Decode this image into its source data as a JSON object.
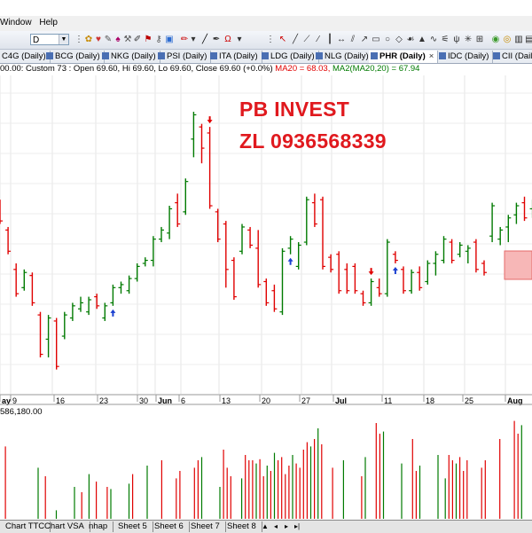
{
  "menu": {
    "items": [
      "Window",
      "Help"
    ]
  },
  "toolbar": {
    "interval_value": "D"
  },
  "tabs": [
    {
      "label": "C4G (Daily)",
      "active": false
    },
    {
      "label": "BCG (Daily)",
      "active": false
    },
    {
      "label": "NKG (Daily)",
      "active": false
    },
    {
      "label": "PSI (Daily)",
      "active": false
    },
    {
      "label": "ITA (Daily)",
      "active": false
    },
    {
      "label": "LDG (Daily)",
      "active": false
    },
    {
      "label": "NLG (Daily)",
      "active": false
    },
    {
      "label": "PHR (Daily)",
      "active": true,
      "close": "×"
    },
    {
      "label": "IDC (Daily)",
      "active": false
    },
    {
      "label": "CII (Daily",
      "active": false
    }
  ],
  "info": {
    "prefix": "00.00: Custom 73 : Open 69.60, Hi 69.60, Lo 69.60, Close 69.60 (+0.0%) ",
    "ma20": "MA20 = 68.03,",
    "ma2": " MA2(MA20,20) = 67.94"
  },
  "watermark": {
    "line1": "PB INVEST",
    "line2": "ZL 0936568339"
  },
  "colors": {
    "up": "#007a00",
    "down": "#e00000",
    "signal": "#1a3fd0",
    "watermark": "#e0191e",
    "highlight": "#f7b7b7"
  },
  "chart_data": {
    "type": "ohlc",
    "x_labels": [
      "ay",
      "9",
      "16",
      "23",
      "30",
      "Jun",
      "6",
      "13",
      "20",
      "27",
      "Jul",
      "11",
      "18",
      "25",
      "Aug"
    ],
    "volume_header": "586,180.00",
    "bars": [
      {
        "o": 70.2,
        "h": 70.4,
        "l": 69.6,
        "c": 69.7
      },
      {
        "o": 69.4,
        "h": 69.5,
        "l": 68.6,
        "c": 68.7
      },
      {
        "o": 68.1,
        "h": 68.3,
        "l": 67.2,
        "c": 67.3
      },
      {
        "o": 67.5,
        "h": 68.1,
        "l": 67.4,
        "c": 68.0
      },
      {
        "o": 67.9,
        "h": 68.0,
        "l": 66.9,
        "c": 67.0
      },
      {
        "o": 66.6,
        "h": 66.7,
        "l": 65.2,
        "c": 65.3
      },
      {
        "o": 65.8,
        "h": 66.6,
        "l": 65.2,
        "c": 66.5
      },
      {
        "o": 66.4,
        "h": 66.5,
        "l": 64.8,
        "c": 64.9
      },
      {
        "o": 65.9,
        "h": 66.7,
        "l": 65.8,
        "c": 66.6
      },
      {
        "o": 66.5,
        "h": 67.0,
        "l": 66.4,
        "c": 66.9
      },
      {
        "o": 66.8,
        "h": 67.2,
        "l": 66.7,
        "c": 67.0
      },
      {
        "o": 66.7,
        "h": 67.2,
        "l": 66.6,
        "c": 67.1
      },
      {
        "o": 67.2,
        "h": 67.3,
        "l": 66.8,
        "c": 66.9
      },
      {
        "o": 66.5,
        "h": 67.0,
        "l": 66.4,
        "c": 66.9
      },
      {
        "o": 67.0,
        "h": 67.6,
        "l": 66.9,
        "c": 67.5
      },
      {
        "o": 67.5,
        "h": 67.7,
        "l": 67.3,
        "c": 67.6
      },
      {
        "o": 67.4,
        "h": 67.9,
        "l": 67.3,
        "c": 67.8
      },
      {
        "o": 67.8,
        "h": 68.3,
        "l": 67.7,
        "c": 68.2
      },
      {
        "o": 68.3,
        "h": 68.5,
        "l": 68.2,
        "c": 68.4
      },
      {
        "o": 68.4,
        "h": 69.2,
        "l": 68.2,
        "c": 69.1
      },
      {
        "o": 69.1,
        "h": 69.5,
        "l": 69.0,
        "c": 69.4
      },
      {
        "o": 69.3,
        "h": 70.2,
        "l": 69.1,
        "c": 70.1
      },
      {
        "o": 70.3,
        "h": 70.6,
        "l": 69.5,
        "c": 69.6
      },
      {
        "o": 70.0,
        "h": 71.1,
        "l": 69.9,
        "c": 71.0
      },
      {
        "o": 72.4,
        "h": 73.3,
        "l": 71.8,
        "c": 73.2
      },
      {
        "o": 72.8,
        "h": 72.9,
        "l": 71.6,
        "c": 72.1
      },
      {
        "o": 72.6,
        "h": 72.8,
        "l": 70.1,
        "c": 70.2
      },
      {
        "o": 70.0,
        "h": 70.1,
        "l": 69.0,
        "c": 69.1
      },
      {
        "o": 69.6,
        "h": 69.7,
        "l": 67.5,
        "c": 68.1
      },
      {
        "o": 68.4,
        "h": 68.5,
        "l": 67.1,
        "c": 67.2
      },
      {
        "o": 68.7,
        "h": 69.6,
        "l": 68.6,
        "c": 69.5
      },
      {
        "o": 69.4,
        "h": 69.5,
        "l": 68.8,
        "c": 68.9
      },
      {
        "o": 68.8,
        "h": 69.4,
        "l": 67.5,
        "c": 67.6
      },
      {
        "o": 67.7,
        "h": 67.8,
        "l": 66.9,
        "c": 67.0
      },
      {
        "o": 67.4,
        "h": 67.6,
        "l": 66.7,
        "c": 66.8
      },
      {
        "o": 66.7,
        "h": 68.8,
        "l": 66.6,
        "c": 68.7
      },
      {
        "o": 68.8,
        "h": 69.2,
        "l": 68.6,
        "c": 69.1
      },
      {
        "o": 68.2,
        "h": 69.0,
        "l": 68.1,
        "c": 68.9
      },
      {
        "o": 69.0,
        "h": 70.5,
        "l": 68.9,
        "c": 70.4
      },
      {
        "o": 70.3,
        "h": 70.6,
        "l": 69.5,
        "c": 69.6
      },
      {
        "o": 70.4,
        "h": 70.5,
        "l": 68.1,
        "c": 68.2
      },
      {
        "o": 68.5,
        "h": 68.6,
        "l": 68.0,
        "c": 68.1
      },
      {
        "o": 68.6,
        "h": 68.7,
        "l": 67.3,
        "c": 67.4
      },
      {
        "o": 68.1,
        "h": 68.3,
        "l": 67.3,
        "c": 67.4
      },
      {
        "o": 68.2,
        "h": 68.3,
        "l": 67.3,
        "c": 67.4
      },
      {
        "o": 67.3,
        "h": 67.4,
        "l": 66.9,
        "c": 67.0
      },
      {
        "o": 67.0,
        "h": 67.8,
        "l": 66.9,
        "c": 67.7
      },
      {
        "o": 67.5,
        "h": 67.8,
        "l": 67.2,
        "c": 67.3
      },
      {
        "o": 67.3,
        "h": 69.1,
        "l": 67.2,
        "c": 69.0
      },
      {
        "o": 68.6,
        "h": 68.7,
        "l": 68.3,
        "c": 68.4
      },
      {
        "o": 68.1,
        "h": 68.2,
        "l": 67.3,
        "c": 67.4
      },
      {
        "o": 67.4,
        "h": 68.1,
        "l": 67.3,
        "c": 68.0
      },
      {
        "o": 68.0,
        "h": 68.2,
        "l": 67.4,
        "c": 67.5
      },
      {
        "o": 67.7,
        "h": 68.4,
        "l": 67.6,
        "c": 68.3
      },
      {
        "o": 68.3,
        "h": 68.7,
        "l": 67.9,
        "c": 68.6
      },
      {
        "o": 68.4,
        "h": 69.2,
        "l": 68.3,
        "c": 69.1
      },
      {
        "o": 69.0,
        "h": 69.1,
        "l": 68.3,
        "c": 68.4
      },
      {
        "o": 68.6,
        "h": 69.0,
        "l": 68.5,
        "c": 68.9
      },
      {
        "o": 68.7,
        "h": 68.9,
        "l": 68.3,
        "c": 68.8
      },
      {
        "o": 69.0,
        "h": 69.1,
        "l": 68.0,
        "c": 68.1
      },
      {
        "o": 68.3,
        "h": 68.4,
        "l": 67.9,
        "c": 68.0
      },
      {
        "o": 69.2,
        "h": 70.3,
        "l": 69.0,
        "c": 70.2
      },
      {
        "o": 69.1,
        "h": 69.5,
        "l": 68.9,
        "c": 69.4
      },
      {
        "o": 69.5,
        "h": 69.9,
        "l": 69.0,
        "c": 69.8
      },
      {
        "o": 69.9,
        "h": 70.3,
        "l": 69.6,
        "c": 70.2
      },
      {
        "o": 70.3,
        "h": 70.5,
        "l": 69.7,
        "c": 69.8
      },
      {
        "o": 70.1,
        "h": 70.4,
        "l": 69.8,
        "c": 70.3
      }
    ],
    "volume": [
      0,
      68,
      0,
      0,
      0,
      0,
      0,
      0,
      0,
      0,
      48,
      0,
      40,
      0,
      0,
      8,
      0,
      0,
      0,
      0,
      30,
      0,
      25,
      0,
      42,
      0,
      35,
      0,
      0,
      30,
      28,
      0,
      0,
      0,
      0,
      33,
      42,
      0,
      0,
      0,
      50,
      0,
      0,
      0,
      55,
      0,
      0,
      0,
      38,
      45,
      0,
      0,
      0,
      48,
      55,
      58,
      0,
      0,
      0,
      0,
      30,
      65,
      48,
      40,
      0,
      0,
      38,
      60,
      55,
      55,
      52,
      56,
      40,
      50,
      45,
      62,
      55,
      58,
      42,
      50,
      60,
      52,
      48,
      65,
      72,
      68,
      75,
      85,
      70,
      0,
      0,
      48,
      0,
      0,
      55,
      0,
      0,
      0,
      0,
      40,
      58,
      0,
      0,
      90,
      80,
      82,
      0,
      0,
      0,
      0,
      52,
      0,
      0,
      75,
      45,
      50,
      0,
      0,
      0,
      0,
      60,
      0,
      38,
      60,
      55,
      52,
      58,
      45,
      55,
      0,
      0,
      0,
      48,
      55,
      0,
      0,
      0,
      75,
      0,
      0,
      0,
      92,
      80,
      88,
      0
    ],
    "signals": [
      {
        "bar": 14,
        "type": "buy"
      },
      {
        "bar": 26,
        "type": "sell"
      },
      {
        "bar": 36,
        "type": "buy"
      },
      {
        "bar": 46,
        "type": "sell"
      },
      {
        "bar": 49,
        "type": "buy"
      }
    ]
  },
  "sheets": [
    "Chart TTC",
    "Chart VSA",
    "nhap",
    "Sheet 5",
    "Sheet 6",
    "Sheet 7",
    "Sheet 8"
  ]
}
